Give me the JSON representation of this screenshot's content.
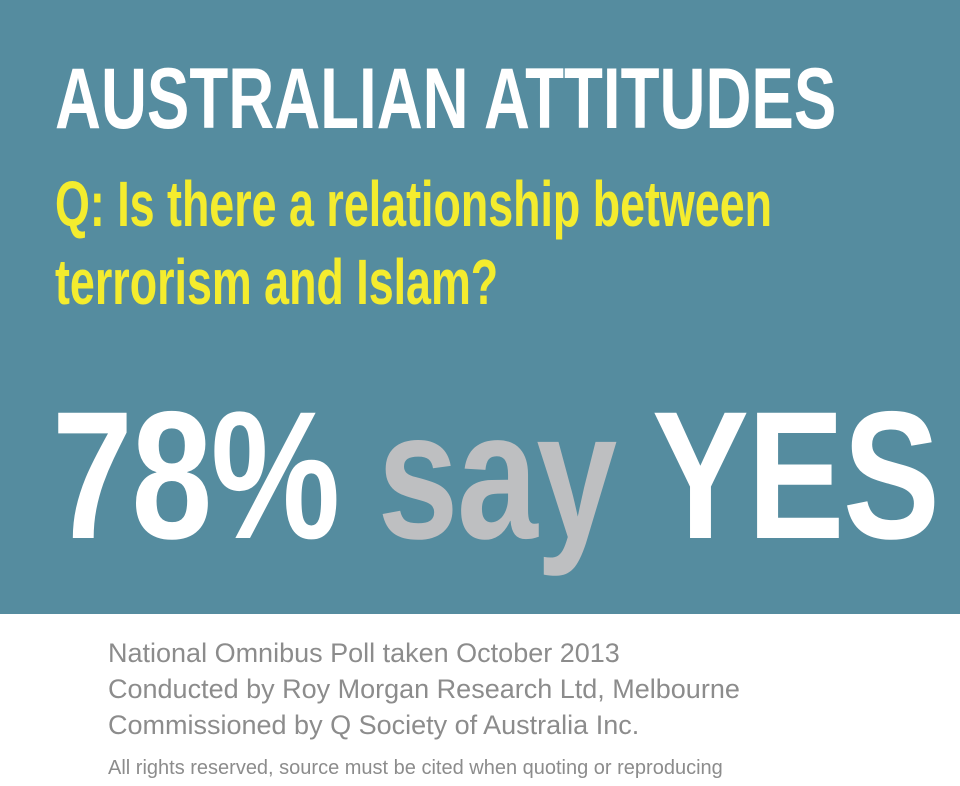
{
  "colors": {
    "background": "#558c9f",
    "question": "#f4ec2e",
    "say": "#bebfc1",
    "footer_text": "#8c8c8c"
  },
  "header": {
    "title": "AUSTRALIAN ATTITUDES"
  },
  "question": {
    "line1": "Q: Is there a relationship between",
    "line2": "terrorism and Islam?"
  },
  "result": {
    "percent": "78%",
    "say": "say",
    "answer": "YES"
  },
  "footer": {
    "line1": "National Omnibus Poll taken October 2013",
    "line2": "Conducted by Roy Morgan Research Ltd, Melbourne",
    "line3": "Commissioned by Q Society of Australia Inc.",
    "line4": "All rights reserved, source must be cited when quoting or reproducing"
  }
}
